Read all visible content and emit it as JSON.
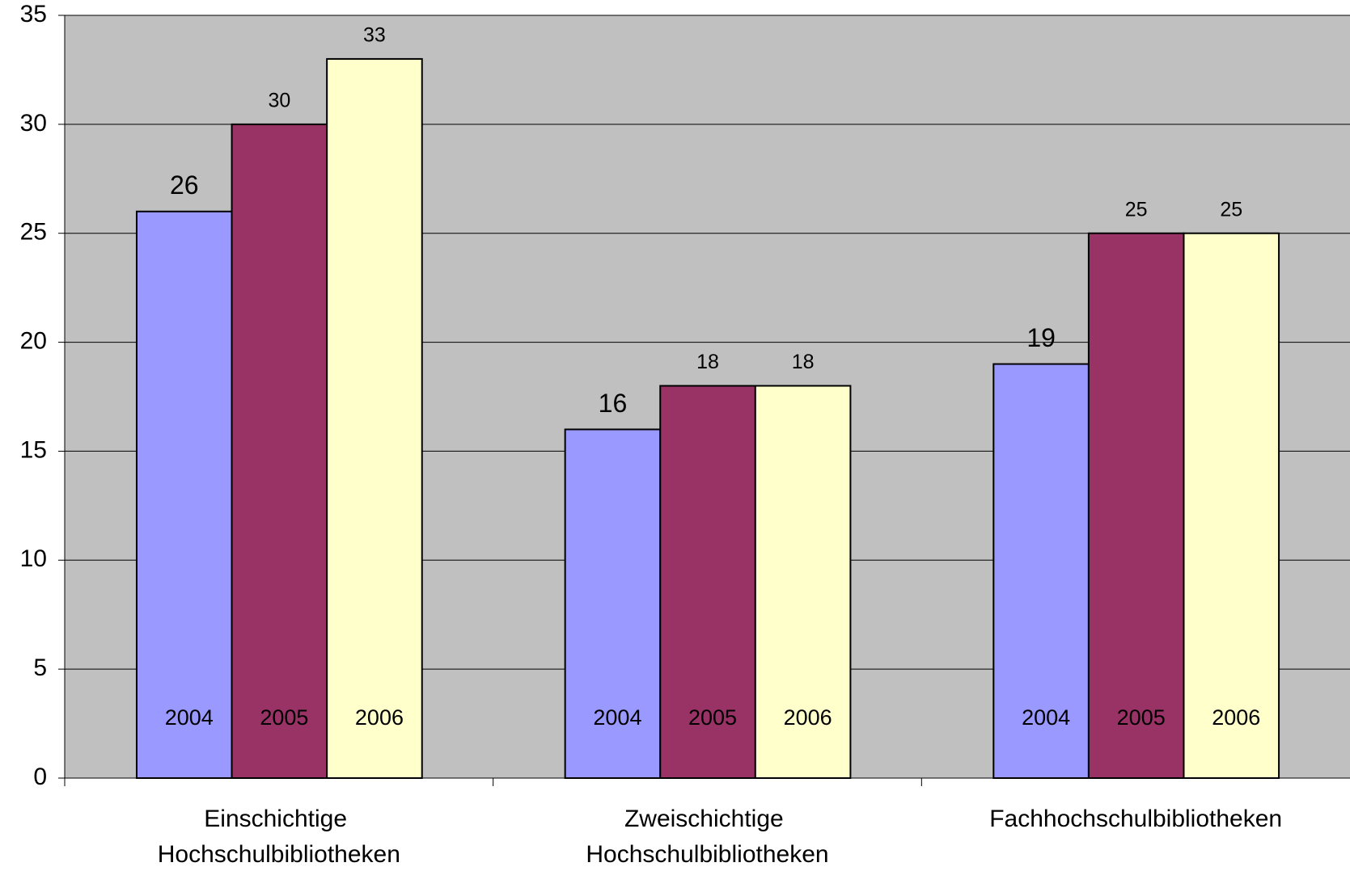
{
  "chart_data": {
    "type": "bar",
    "categories": [
      "Einschichtige Hochschulbibliotheken",
      "Zweischichtige Hochschulbibliotheken",
      "Fachhochschulbibliotheken"
    ],
    "series": [
      {
        "name": "2004",
        "color": "#9999ff",
        "values": [
          26,
          16,
          19
        ]
      },
      {
        "name": "2005",
        "color": "#993366",
        "values": [
          30,
          18,
          25
        ]
      },
      {
        "name": "2006",
        "color": "#ffffcc",
        "values": [
          33,
          18,
          25
        ]
      }
    ],
    "ylim": [
      0,
      35
    ],
    "yticks": [
      0,
      5,
      10,
      15,
      20,
      25,
      30,
      35
    ],
    "grid": true,
    "plot_background": "#c0c0c0"
  }
}
